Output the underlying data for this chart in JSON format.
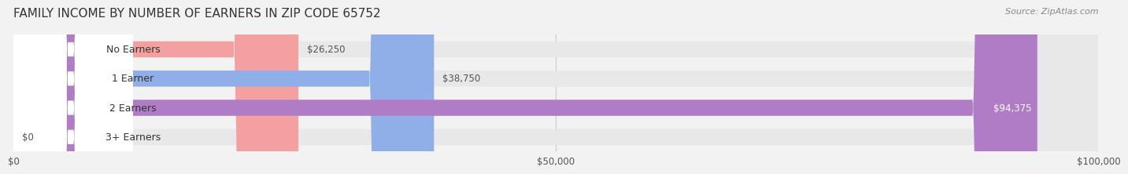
{
  "title": "FAMILY INCOME BY NUMBER OF EARNERS IN ZIP CODE 65752",
  "source": "Source: ZipAtlas.com",
  "categories": [
    "No Earners",
    "1 Earner",
    "2 Earners",
    "3+ Earners"
  ],
  "values": [
    26250,
    38750,
    94375,
    0
  ],
  "bar_colors": [
    "#f4a0a0",
    "#90aee8",
    "#b07cc6",
    "#7dd4cc"
  ],
  "label_bg_colors": [
    "#f4a0a0",
    "#90aee8",
    "#b07cc6",
    "#7dd4cc"
  ],
  "value_labels": [
    "$26,250",
    "$38,750",
    "$94,375",
    "$0"
  ],
  "xlim": [
    0,
    100000
  ],
  "xticks": [
    0,
    50000,
    100000
  ],
  "xtick_labels": [
    "$0",
    "$50,000",
    "$100,000"
  ],
  "bar_height": 0.55,
  "background_color": "#f2f2f2",
  "bar_bg_color": "#e8e8e8",
  "title_fontsize": 11,
  "source_fontsize": 8,
  "label_fontsize": 9,
  "value_fontsize": 8.5
}
